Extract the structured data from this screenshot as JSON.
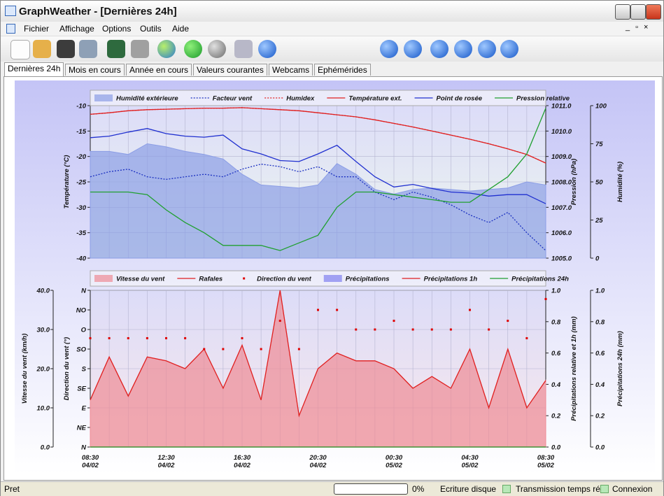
{
  "window_title": "GraphWeather - [Dernières 24h]",
  "menu": [
    "Fichier",
    "Affichage",
    "Options",
    "Outils",
    "Aide"
  ],
  "tabs": [
    "Dernières 24h",
    "Mois en cours",
    "Année en cours",
    "Valeurs courantes",
    "Webcams",
    "Ephémérides"
  ],
  "active_tab": 0,
  "status": {
    "text": "Pret",
    "progress": "0%",
    "items": [
      "Ecriture disque",
      "Transmission temps réel",
      "Connexion"
    ]
  },
  "chart_data": [
    {
      "type": "line",
      "categories": [
        null,
        null,
        null,
        null,
        null,
        null,
        null,
        null,
        null,
        null,
        null,
        null,
        null,
        null,
        null,
        null,
        null,
        null,
        null,
        null,
        null,
        null,
        null,
        null,
        null
      ],
      "grid": true,
      "ylabel": "Température (°C)",
      "ylim": [
        -40,
        -10
      ],
      "yticks": [
        -40,
        -35,
        -30,
        -25,
        -20,
        -15,
        -10
      ],
      "y2label": "Pression (hPa)",
      "y2lim": [
        1005,
        1011
      ],
      "y2ticks": [
        {
          "value": 1005,
          "label": "1005.0"
        },
        {
          "value": 1006,
          "label": "1006.0"
        },
        {
          "value": 1007,
          "label": "1007.0"
        },
        {
          "value": 1008,
          "label": "1008.0"
        },
        {
          "value": 1009,
          "label": "1009.0"
        },
        {
          "value": 1010,
          "label": "1010.0"
        },
        {
          "value": 1011,
          "label": "1011.0"
        }
      ],
      "y3label": "Humidité (%)",
      "y3lim": [
        0,
        100
      ],
      "y3ticks": [
        0,
        25,
        50,
        75,
        100
      ],
      "series": [
        {
          "name": "Humidité extérieure",
          "style": "area",
          "axis": "y3",
          "color": "#8c9ee6",
          "values": [
            70,
            70,
            68,
            75,
            73,
            70,
            68,
            65,
            55,
            48,
            47,
            46,
            48,
            62,
            55,
            45,
            42,
            45,
            46,
            45,
            44,
            45,
            46,
            50,
            48
          ]
        },
        {
          "name": "Facteur vent",
          "style": "dotted",
          "axis": "y",
          "color": "#1a2fc0",
          "values": [
            -24,
            -23,
            -22.5,
            -24,
            -24.5,
            -24,
            -23.5,
            -24,
            -22.5,
            -21.5,
            -22,
            -23,
            -22,
            -24,
            -24,
            -27,
            -28.5,
            -27,
            -28,
            -29.5,
            -31.5,
            -33,
            -31,
            -35,
            -38.5
          ]
        },
        {
          "name": "Humidex",
          "style": "dotted",
          "axis": "y",
          "color": "#e02020",
          "values": [
            -11.7,
            -11.4,
            -11,
            -10.8,
            -10.7,
            -10.6,
            -10.5,
            -10.5,
            -10.4,
            -10.6,
            -10.8,
            -11,
            -11.4,
            -11.8,
            -12.2,
            -12.8,
            -13.5,
            -14.2,
            -15,
            -15.8,
            -16.6,
            -17.5,
            -18.5,
            -19.6,
            -21.3
          ]
        },
        {
          "name": "Température ext.",
          "style": "line",
          "axis": "y",
          "color": "#e02020",
          "values": [
            -11.7,
            -11.4,
            -11,
            -10.8,
            -10.7,
            -10.6,
            -10.5,
            -10.5,
            -10.4,
            -10.6,
            -10.8,
            -11,
            -11.4,
            -11.8,
            -12.2,
            -12.8,
            -13.5,
            -14.2,
            -15,
            -15.8,
            -16.6,
            -17.5,
            -18.5,
            -19.6,
            -21.3
          ]
        },
        {
          "name": "Point de rosée",
          "style": "line",
          "axis": "y",
          "color": "#2030d0",
          "values": [
            -16.3,
            -16,
            -15.2,
            -14.5,
            -15.5,
            -16,
            -16.2,
            -15.8,
            -18.5,
            -19.5,
            -20.8,
            -21,
            -19.5,
            -17.8,
            -21,
            -24,
            -26,
            -25.5,
            -26.3,
            -27,
            -27.2,
            -27.8,
            -27.5,
            -27.5,
            -29.3
          ]
        },
        {
          "name": "Pression relative",
          "style": "line",
          "axis": "y2",
          "color": "#20a030",
          "values": [
            1007.6,
            1007.6,
            1007.6,
            1007.5,
            1006.9,
            1006.4,
            1006.0,
            1005.5,
            1005.5,
            1005.5,
            1005.3,
            1005.6,
            1005.9,
            1007.0,
            1007.6,
            1007.6,
            1007.5,
            1007.4,
            1007.3,
            1007.2,
            1007.2,
            1007.7,
            1008.2,
            1009.1,
            1010.9
          ]
        }
      ]
    },
    {
      "type": "line",
      "categories": [
        "08:30",
        null,
        null,
        null,
        "12:30",
        null,
        null,
        null,
        "16:30",
        null,
        null,
        null,
        "20:30",
        null,
        null,
        null,
        "00:30",
        null,
        null,
        null,
        "04:30",
        null,
        null,
        null,
        "08:30"
      ],
      "category_dates": [
        "04/02",
        null,
        null,
        null,
        "04/02",
        null,
        null,
        null,
        "04/02",
        null,
        null,
        null,
        "04/02",
        null,
        null,
        null,
        "05/02",
        null,
        null,
        null,
        "05/02",
        null,
        null,
        null,
        "05/02"
      ],
      "grid": true,
      "ylabel": "Vitesse du vent (km/h)",
      "ylim": [
        0,
        40
      ],
      "yticks": [
        {
          "value": 0,
          "label": "0.0"
        },
        {
          "value": 10,
          "label": "10.0"
        },
        {
          "value": 20,
          "label": "20.0"
        },
        {
          "value": 30,
          "label": "30.0"
        },
        {
          "value": 40,
          "label": "40.0"
        }
      ],
      "y2label": "Direction du vent (°)",
      "y2lim": [
        0,
        360
      ],
      "y2ticks": [
        {
          "value": 0,
          "label": "N"
        },
        {
          "value": 45,
          "label": "NE"
        },
        {
          "value": 90,
          "label": "E"
        },
        {
          "value": 135,
          "label": "SE"
        },
        {
          "value": 180,
          "label": "S"
        },
        {
          "value": 225,
          "label": "SO"
        },
        {
          "value": 270,
          "label": "O"
        },
        {
          "value": 315,
          "label": "NO"
        },
        {
          "value": 360,
          "label": "N"
        }
      ],
      "y3label": "Précipitations relative et 1h (mm)",
      "y3lim": [
        0,
        1
      ],
      "y3ticks": [
        {
          "value": 0,
          "label": "0.0"
        },
        {
          "value": 0.2,
          "label": "0.2"
        },
        {
          "value": 0.4,
          "label": "0.4"
        },
        {
          "value": 0.6,
          "label": "0.6"
        },
        {
          "value": 0.8,
          "label": "0.8"
        },
        {
          "value": 1,
          "label": "1.0"
        }
      ],
      "y4label": "Précipitations 24h (mm)",
      "y4lim": [
        0,
        1
      ],
      "y4ticks": [
        {
          "value": 0,
          "label": "0.0"
        },
        {
          "value": 0.2,
          "label": "0.2"
        },
        {
          "value": 0.4,
          "label": "0.4"
        },
        {
          "value": 0.6,
          "label": "0.6"
        },
        {
          "value": 0.8,
          "label": "0.8"
        },
        {
          "value": 1,
          "label": "1.0"
        }
      ],
      "series": [
        {
          "name": "Vitesse du vent",
          "style": "area",
          "axis": "y",
          "color": "#ee8c96",
          "values": [
            12,
            23,
            13,
            23,
            22,
            20,
            25,
            15,
            26,
            12,
            40,
            8,
            20,
            24,
            22,
            22,
            20,
            15,
            18,
            15,
            25,
            10,
            25,
            10,
            17
          ]
        },
        {
          "name": "Rafales",
          "style": "line",
          "axis": "y",
          "color": "#e02020",
          "values": [
            12,
            23,
            13,
            23,
            22,
            20,
            25,
            15,
            26,
            12,
            40,
            8,
            20,
            24,
            22,
            22,
            20,
            15,
            18,
            15,
            25,
            10,
            25,
            10,
            17
          ]
        },
        {
          "name": "Direction du vent",
          "style": "points",
          "axis": "y2",
          "color": "#e00000",
          "values": [
            250,
            250,
            250,
            250,
            250,
            250,
            225,
            225,
            250,
            225,
            290,
            225,
            315,
            315,
            270,
            270,
            290,
            270,
            270,
            270,
            315,
            270,
            290,
            250,
            340
          ]
        },
        {
          "name": "Précipitations",
          "style": "area",
          "axis": "y3",
          "color": "#8080f0",
          "values": [
            0,
            0,
            0,
            0,
            0,
            0,
            0,
            0,
            0,
            0,
            0,
            0,
            0,
            0,
            0,
            0,
            0,
            0,
            0,
            0,
            0,
            0,
            0,
            0,
            0
          ]
        },
        {
          "name": "Précipitations 1h",
          "style": "line",
          "axis": "y3",
          "color": "#e02020",
          "values": [
            0,
            0,
            0,
            0,
            0,
            0,
            0,
            0,
            0,
            0,
            0,
            0,
            0,
            0,
            0,
            0,
            0,
            0,
            0,
            0,
            0,
            0,
            0,
            0,
            0
          ]
        },
        {
          "name": "Précipitations 24h",
          "style": "line",
          "axis": "y4",
          "color": "#20a030",
          "values": [
            0,
            0,
            0,
            0,
            0,
            0,
            0,
            0,
            0,
            0,
            0,
            0,
            0,
            0,
            0,
            0,
            0,
            0,
            0,
            0,
            0,
            0,
            0,
            0,
            0
          ]
        }
      ]
    }
  ]
}
